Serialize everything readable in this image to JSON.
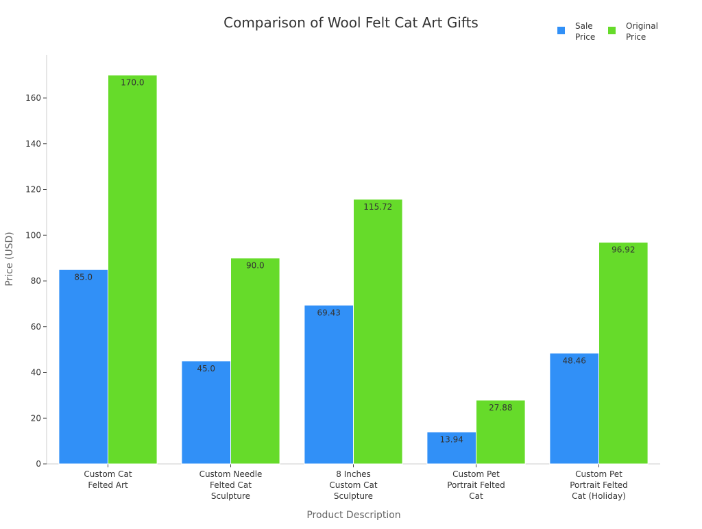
{
  "chart_data": {
    "type": "bar",
    "title": "Comparison of Wool Felt Cat Art Gifts",
    "xlabel": "Product Description",
    "ylabel": "Price (USD)",
    "ylim": [
      0,
      178
    ],
    "yticks": [
      0,
      20,
      40,
      60,
      80,
      100,
      120,
      140,
      160
    ],
    "grid": false,
    "legend_position": "top-right",
    "categories": [
      [
        "Custom Cat",
        "Felted Art"
      ],
      [
        "Custom Needle",
        "Felted Cat",
        "Sculpture"
      ],
      [
        "8 Inches",
        "Custom Cat",
        "Sculpture"
      ],
      [
        "Custom Pet",
        "Portrait Felted",
        "Cat"
      ],
      [
        "Custom Pet",
        "Portrait Felted",
        "Cat (Holiday)"
      ]
    ],
    "series": [
      {
        "name": "Sale Price",
        "legend_lines": [
          "Sale",
          "Price"
        ],
        "color": "#3190f7",
        "values": [
          85.0,
          45.0,
          69.43,
          13.94,
          48.46
        ],
        "labels": [
          "85.0",
          "45.0",
          "69.43",
          "13.94",
          "48.46"
        ]
      },
      {
        "name": "Original Price",
        "legend_lines": [
          "Original",
          "Price"
        ],
        "color": "#66db2a",
        "values": [
          170.0,
          90.0,
          115.72,
          27.88,
          96.92
        ],
        "labels": [
          "170.0",
          "90.0",
          "115.72",
          "27.88",
          "96.92"
        ]
      }
    ]
  }
}
